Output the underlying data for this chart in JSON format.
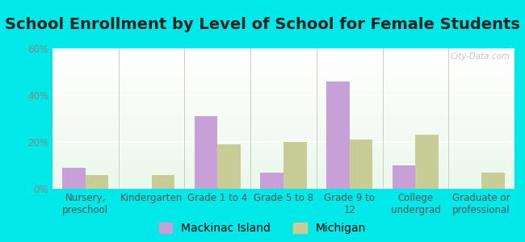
{
  "title": "School Enrollment by Level of School for Female Students",
  "categories": [
    "Nursery,\npreschool",
    "Kindergarten",
    "Grade 1 to 4",
    "Grade 5 to 8",
    "Grade 9 to\n12",
    "College\nundergrad",
    "Graduate or\nprofessional"
  ],
  "mackinac": [
    9,
    0,
    31,
    7,
    46,
    10,
    0
  ],
  "michigan": [
    6,
    6,
    19,
    20,
    21,
    23,
    7
  ],
  "mackinac_color": "#c8a0d8",
  "michigan_color": "#c8cc96",
  "background_color": "#00e8e8",
  "ylim": [
    0,
    60
  ],
  "yticks": [
    0,
    20,
    40,
    60
  ],
  "ytick_labels": [
    "0%",
    "20%",
    "40%",
    "60%"
  ],
  "legend_mackinac": "Mackinac Island",
  "legend_michigan": "Michigan",
  "bar_width": 0.35,
  "title_fontsize": 14,
  "tick_fontsize": 8.5,
  "legend_fontsize": 10,
  "watermark": "City-Data.com"
}
